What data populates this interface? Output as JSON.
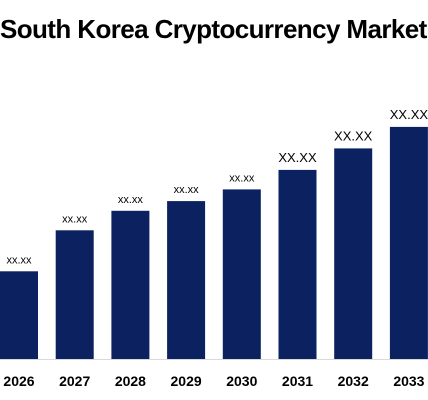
{
  "colors": {
    "bar": "#0b2160",
    "axis": "#d9d9d9",
    "text": "#000000",
    "background": "#ffffff"
  },
  "chart_data": {
    "type": "bar",
    "title": "South Korea Cryptocurrency Market",
    "xlabel": "",
    "ylabel": "",
    "grid": false,
    "legend": "none",
    "ylim": [
      0,
      12
    ],
    "categories": [
      "2026",
      "2027",
      "2028",
      "2029",
      "2030",
      "2031",
      "2032",
      "2033"
    ],
    "values": [
      4.5,
      6.6,
      7.6,
      8.1,
      8.7,
      9.7,
      10.8,
      11.9
    ],
    "data_labels": [
      "xx.xx",
      "xx.xx",
      "xx.xx",
      "xx.xx",
      "xx.xx",
      "XX.XX",
      "XX.XX",
      "XX.XX"
    ]
  }
}
